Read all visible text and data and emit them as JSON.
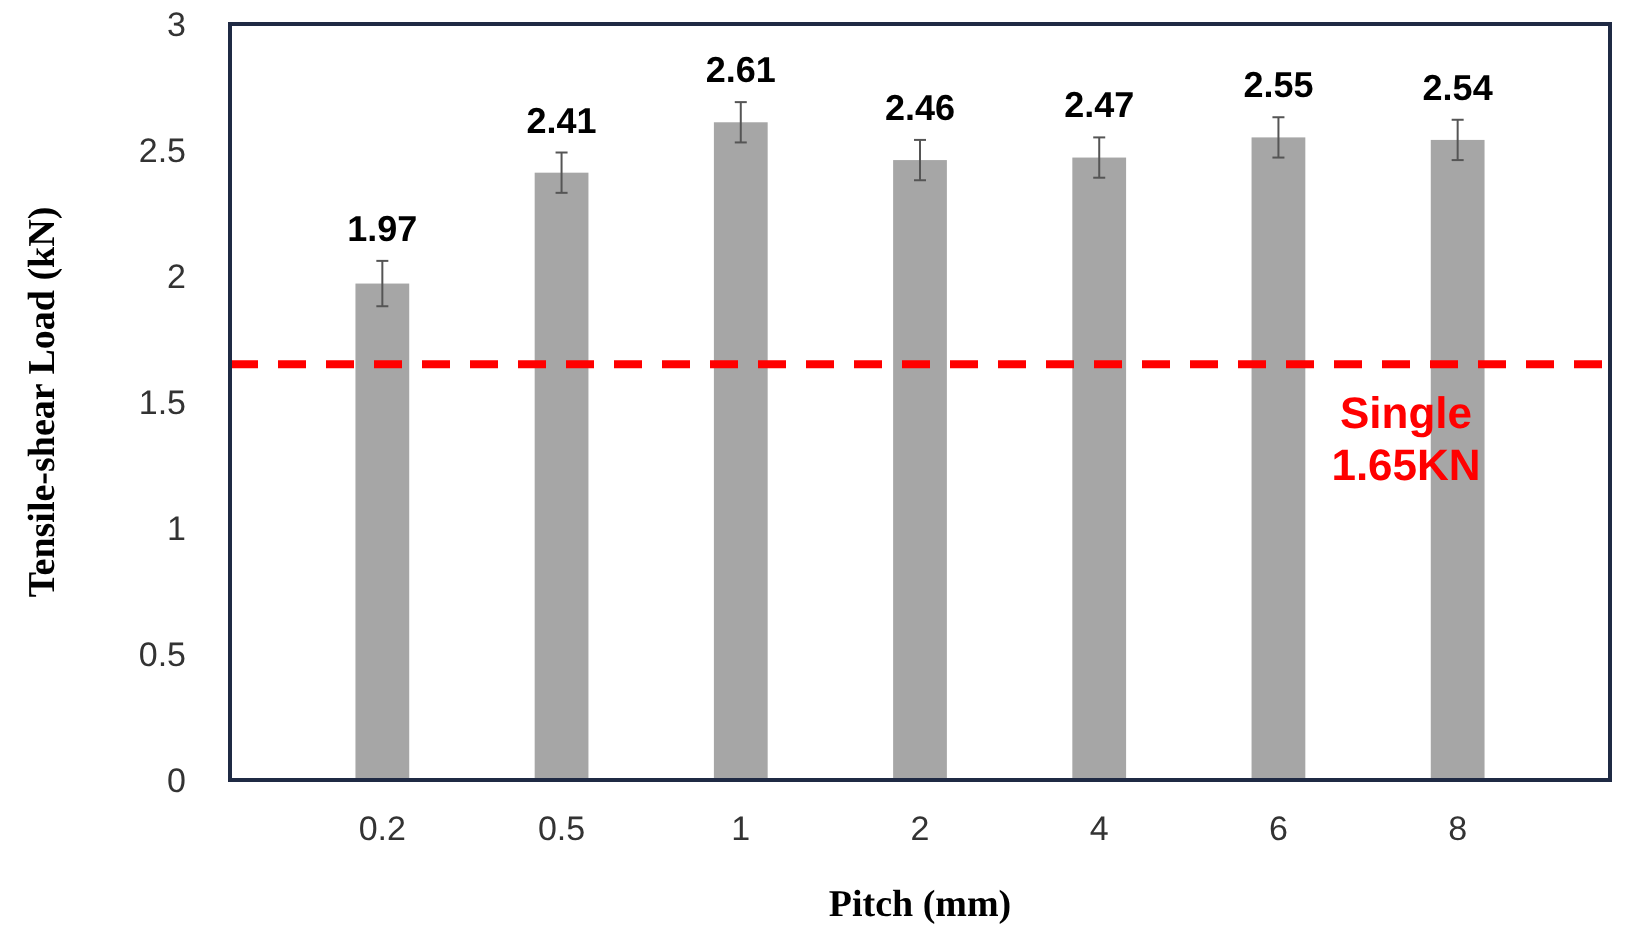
{
  "chart_data": {
    "type": "bar",
    "xlabel": "Pitch (mm)",
    "ylabel": "Tensile-shear Load (kN)",
    "categories": [
      "0.2",
      "0.5",
      "1",
      "2",
      "4",
      "6",
      "8"
    ],
    "values": [
      1.97,
      2.41,
      2.61,
      2.46,
      2.47,
      2.55,
      2.54
    ],
    "errors": [
      0.09,
      0.08,
      0.08,
      0.08,
      0.08,
      0.08,
      0.08
    ],
    "color": "#a6a6a6",
    "data_labels": true,
    "ylim": [
      0,
      3
    ],
    "yticks": [
      0,
      0.5,
      1,
      1.5,
      2,
      2.5,
      3
    ],
    "grid": false,
    "ref_lines": [
      {
        "axis": "y",
        "value": 1.65,
        "label": "Single 1.65KN",
        "color": "#ff0000",
        "line_style": "dashed"
      }
    ]
  }
}
